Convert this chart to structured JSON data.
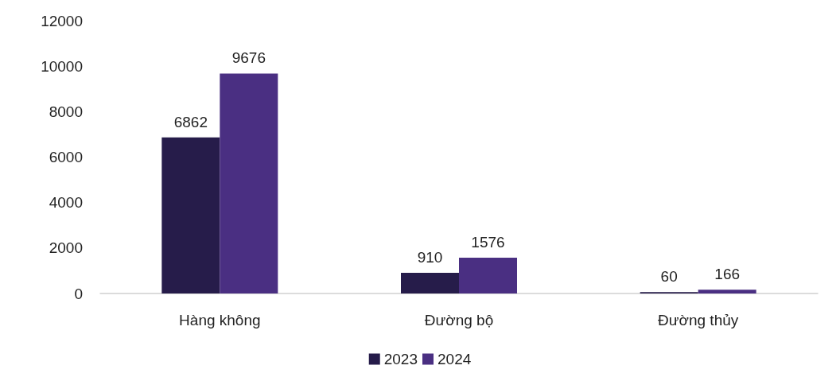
{
  "chart_data": {
    "type": "bar",
    "categories": [
      "Hàng không",
      "Đường bộ",
      "Đường thủy"
    ],
    "series": [
      {
        "name": "2023",
        "color": "#261c4a",
        "values": [
          6862,
          910,
          60
        ]
      },
      {
        "name": "2024",
        "color": "#4a2f82",
        "values": [
          9676,
          1576,
          166
        ]
      }
    ],
    "ylim": [
      0,
      12000
    ],
    "yticks": [
      0,
      2000,
      4000,
      6000,
      8000,
      10000,
      12000
    ],
    "grid": false,
    "legend": "bottom",
    "data_labels": true
  }
}
